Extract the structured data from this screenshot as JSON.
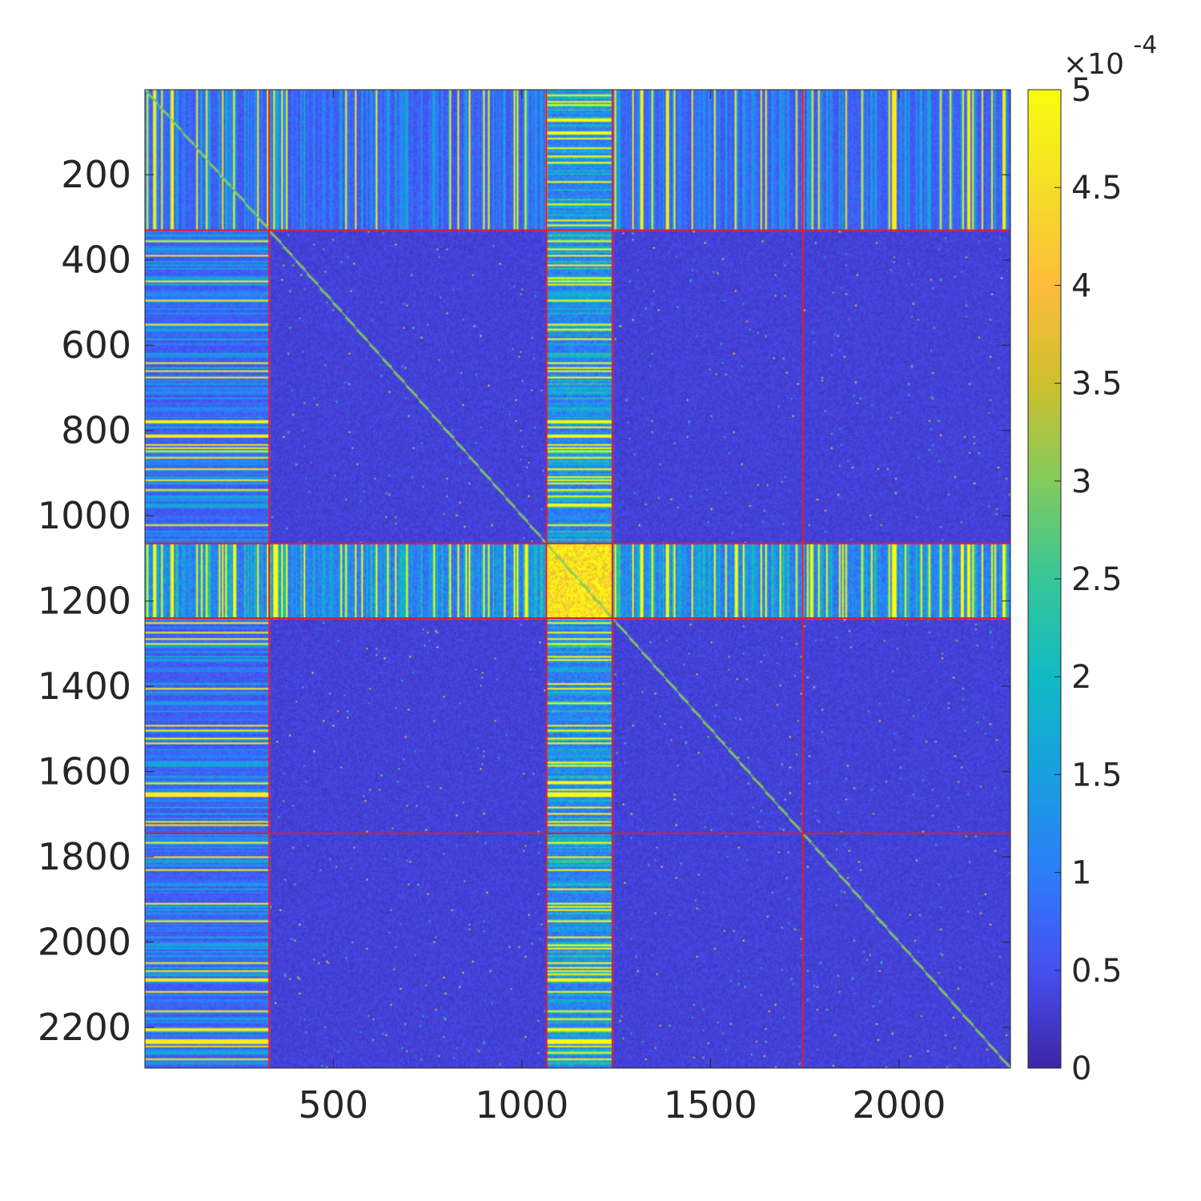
{
  "chart_data": {
    "type": "heatmap",
    "title": "",
    "xlabel": "",
    "ylabel": "",
    "colormap": "parula",
    "n": 2295,
    "xlim": [
      1,
      2295
    ],
    "ylim": [
      1,
      2295
    ],
    "y_reversed": true,
    "x_ticks": [
      500,
      1000,
      1500,
      2000
    ],
    "x_tick_labels": [
      "500",
      "1000",
      "1500",
      "2000"
    ],
    "y_ticks": [
      200,
      400,
      600,
      800,
      1000,
      1200,
      1400,
      1600,
      1800,
      2000,
      2200
    ],
    "y_tick_labels": [
      "200",
      "400",
      "600",
      "800",
      "1000",
      "1200",
      "1400",
      "1600",
      "1800",
      "2000",
      "2200"
    ],
    "colorbar": {
      "limits": [
        0,
        0.0005
      ],
      "ticks": [
        0,
        0.5,
        1,
        1.5,
        2,
        2.5,
        3,
        3.5,
        4,
        4.5,
        5
      ],
      "tick_labels": [
        "0",
        "0.5",
        "1",
        "1.5",
        "2",
        "2.5",
        "3",
        "3.5",
        "4",
        "4.5",
        "5"
      ],
      "multiplier_prefix": "×10",
      "multiplier_exponent": "-4"
    },
    "block_boundaries": [
      330,
      1065,
      1240,
      1745
    ],
    "block_boundary_color": "#e8192c",
    "blocks_note_values": {
      "background_value": 2e-05,
      "hub_block": [
        1065,
        1240
      ],
      "hub_block_value": 0.0005,
      "first_block": [
        1,
        330
      ],
      "first_block_value": 8e-05
    }
  },
  "colors": {
    "low": "#3e26a8",
    "mid": "#26b0be",
    "high": "#f9fb0e",
    "frame": "#262626"
  }
}
